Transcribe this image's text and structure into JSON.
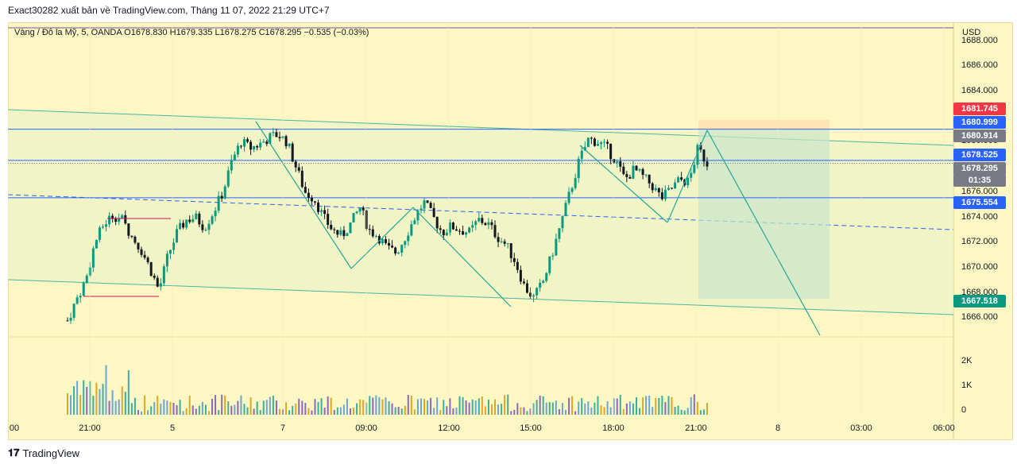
{
  "header": {
    "text": "Exact30282 xuất bản về TradingView.com, Tháng 11 07, 2022 21:29 UTC+7"
  },
  "legend": {
    "text": "Vàng / Đô la Mỹ, 5, OANDA  O1678.830  H1679.335  L1678.275  C1678.295  −0.535 (−0.03%)"
  },
  "axis": {
    "currency": "USD"
  },
  "footer": {
    "brand": "TradingView",
    "logo_icon": "tradingview-logo-icon"
  },
  "colors": {
    "background": "#fdf7c3",
    "up_candle": "#089981",
    "down_candle": "#131722",
    "channel": "#4fb3a3",
    "level_line": "#2962ff",
    "zigzag": "#26a69a",
    "short_target_zone": "#c8e6c9",
    "short_stop_zone": "#ffe0b2",
    "tag_red": "#f23645",
    "tag_blue": "#2962ff",
    "tag_gray": "#787b86",
    "tag_green": "#089981"
  },
  "price_tags": [
    {
      "label": "1681.745",
      "color": "#f23645"
    },
    {
      "label": "1680.999",
      "color": "#2962ff"
    },
    {
      "label": "1680.914",
      "color": "#787b86"
    },
    {
      "label": "1678.525",
      "color": "#2962ff"
    },
    {
      "label": "1678.295",
      "color": "#787b86"
    },
    {
      "label": "01:35",
      "color": "#787b86"
    },
    {
      "label": "1675.554",
      "color": "#2962ff"
    },
    {
      "label": "1667.518",
      "color": "#089981"
    }
  ],
  "chart_data": {
    "type": "candlestick",
    "symbol": "XAUUSD",
    "timeframe": "5",
    "exchange": "OANDA",
    "y_ticks": [
      "1688.000",
      "1686.000",
      "1684.000",
      "1680.000",
      "1676.000",
      "1674.000",
      "1672.000",
      "1670.000",
      "1668.000",
      "1666.000"
    ],
    "x_ticks": [
      "00",
      "21:00",
      "5",
      "7",
      "09:00",
      "12:00",
      "15:00",
      "18:00",
      "21:00",
      "8",
      "03:00",
      "06:00"
    ],
    "volume_ticks": [
      "2K",
      "1K",
      "0"
    ],
    "ylim": [
      1664.5,
      1689.5
    ],
    "close_path": [
      1665.8,
      1667.5,
      1669.0,
      1672.0,
      1673.5,
      1674.2,
      1673.8,
      1672.5,
      1671.5,
      1670.0,
      1668.2,
      1671.0,
      1672.8,
      1673.8,
      1674.0,
      1673.2,
      1674.5,
      1676.0,
      1678.5,
      1680.0,
      1679.5,
      1679.8,
      1680.3,
      1680.6,
      1680.0,
      1678.0,
      1676.0,
      1675.5,
      1674.0,
      1673.0,
      1672.5,
      1673.5,
      1674.8,
      1673.0,
      1672.5,
      1671.5,
      1671.2,
      1672.5,
      1674.0,
      1675.2,
      1674.0,
      1672.8,
      1673.3,
      1673.0,
      1672.8,
      1673.8,
      1673.5,
      1672.5,
      1671.8,
      1670.5,
      1668.5,
      1667.6,
      1668.8,
      1671.0,
      1673.5,
      1676.0,
      1678.5,
      1680.2,
      1680.0,
      1679.5,
      1678.5,
      1677.0,
      1677.8,
      1677.2,
      1676.5,
      1675.5,
      1676.2,
      1677.0,
      1676.8,
      1679.5,
      1678.3
    ],
    "levels": [
      1680.999,
      1678.525,
      1675.554
    ],
    "short_position": {
      "entry": 1680.914,
      "stop": 1681.745,
      "target": 1667.518
    },
    "last_price": 1678.295,
    "countdown": "01:35"
  }
}
